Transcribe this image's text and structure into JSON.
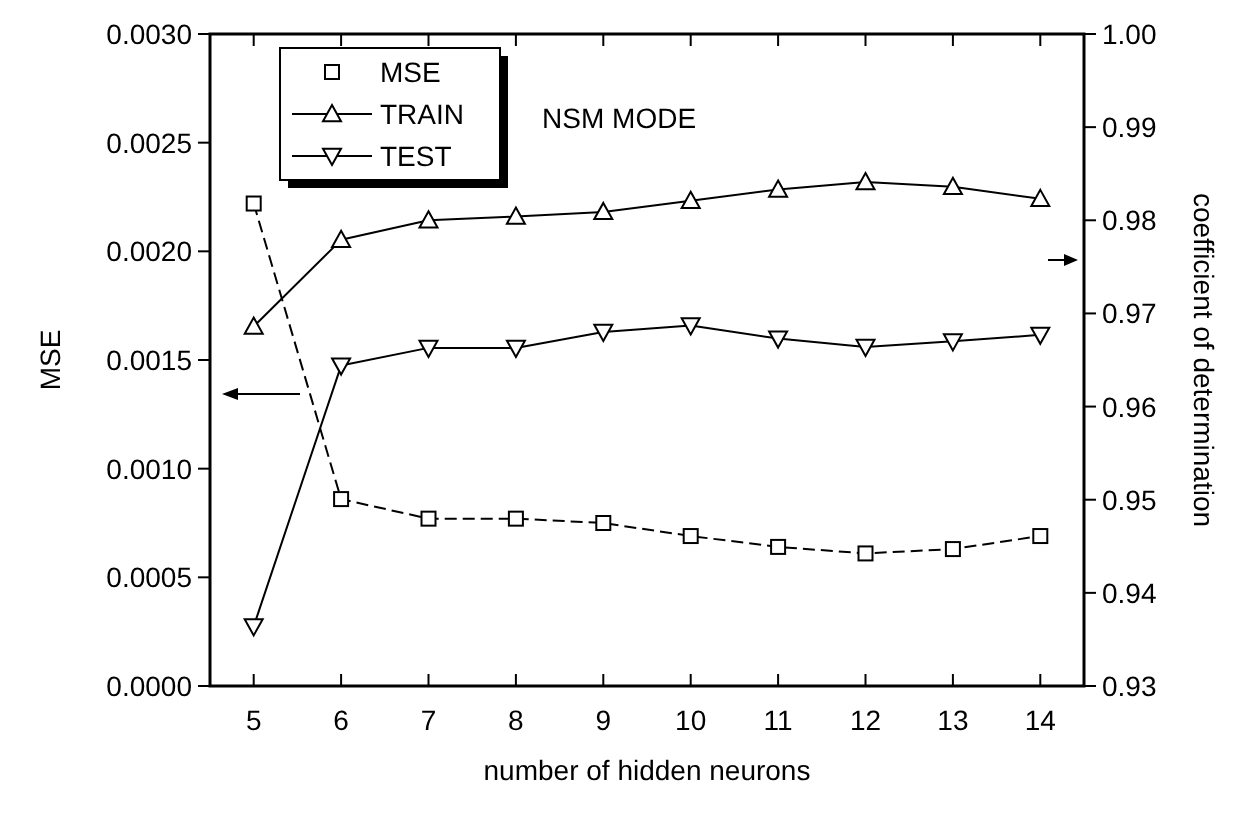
{
  "chart_data": {
    "type": "line",
    "xlabel": "number of hidden neurons",
    "ylabel": "MSE",
    "y2label": "coefficient of determination",
    "annotations": [
      "NSM MODE"
    ],
    "x": [
      5,
      6,
      7,
      8,
      9,
      10,
      11,
      12,
      13,
      14
    ],
    "xlim": [
      4.5,
      14.5
    ],
    "xticks": [
      5,
      6,
      7,
      8,
      9,
      10,
      11,
      12,
      13,
      14
    ],
    "ylim": [
      0,
      0.003
    ],
    "yticks": [
      {
        "value": 0,
        "label": "0.0000"
      },
      {
        "value": 0.0005,
        "label": "0.0005"
      },
      {
        "value": 0.001,
        "label": "0.0010"
      },
      {
        "value": 0.0015,
        "label": "0.0015"
      },
      {
        "value": 0.002,
        "label": "0.0020"
      },
      {
        "value": 0.0025,
        "label": "0.0025"
      },
      {
        "value": 0.003,
        "label": "0.0030"
      }
    ],
    "y2lim": [
      0.93,
      1.0
    ],
    "y2ticks": [
      0.93,
      0.94,
      0.95,
      0.96,
      0.97,
      0.98,
      0.99,
      {
        "value": 1.0,
        "label": "1.00"
      }
    ],
    "legend": "top left",
    "grid": false,
    "series": [
      {
        "name": "MSE",
        "color": "#000000",
        "marker": "square",
        "line_style": "dashed",
        "values": [
          0.00222,
          0.00086,
          0.00077,
          0.00077,
          0.00075,
          0.00069,
          0.00064,
          0.00061,
          0.00063,
          0.00069
        ]
      },
      {
        "name": "TRAIN",
        "color": "#000000",
        "marker": "triangle",
        "line_style": "solid",
        "axis": "y2",
        "values": [
          0.9686,
          0.9779,
          0.98,
          0.9804,
          0.9809,
          0.9821,
          0.9833,
          0.9841,
          0.9836,
          0.9823
        ]
      },
      {
        "name": "TEST",
        "color": "#000000",
        "marker": "triangle-down",
        "line_style": "solid",
        "axis": "y2",
        "values": [
          0.9364,
          0.9644,
          0.9663,
          0.9663,
          0.968,
          0.9687,
          0.9673,
          0.9664,
          0.967,
          0.9677
        ]
      }
    ]
  }
}
